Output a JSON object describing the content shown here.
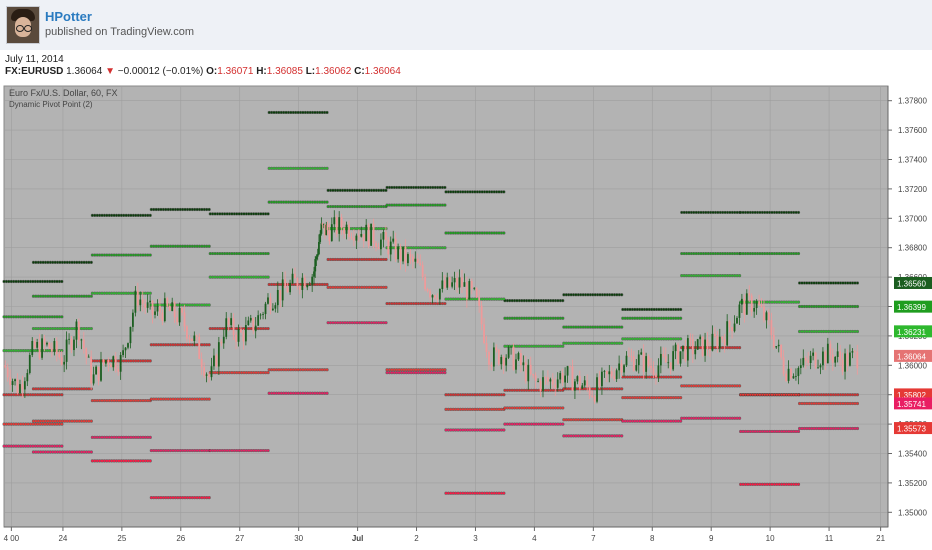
{
  "header": {
    "author": "HPotter",
    "published": "published on TradingView.com"
  },
  "info": {
    "date": "July 11, 2014",
    "symbol": "FX:EURUSD",
    "last": "1.36064",
    "change": "−0.00012 (−0.01%)",
    "open_label": "O:",
    "open": "1.36071",
    "high_label": "H:",
    "high": "1.36085",
    "low_label": "L:",
    "low": "1.36062",
    "close_label": "C:",
    "close": "1.36064"
  },
  "chart_data": {
    "type": "line",
    "title": "Euro Fx/U.S. Dollar, 60, FX",
    "subtitle": "Dynamic Pivot Point (2)",
    "ylim": [
      1.349,
      1.379
    ],
    "y_ticks": [
      "1.37800",
      "1.37600",
      "1.37400",
      "1.37200",
      "1.37000",
      "1.36800",
      "1.36600",
      "1.36400",
      "1.36200",
      "1.36000",
      "1.35800",
      "1.35600",
      "1.35400",
      "1.35200",
      "1.35000"
    ],
    "y_tick_values": [
      1.378,
      1.376,
      1.374,
      1.372,
      1.37,
      1.368,
      1.366,
      1.364,
      1.362,
      1.36,
      1.358,
      1.356,
      1.354,
      1.352,
      1.35
    ],
    "x_ticks": [
      "4 00",
      "24",
      "25",
      "26",
      "27",
      "30",
      "Jul",
      "2",
      "3",
      "4",
      "7",
      "8",
      "9",
      "10",
      "11",
      "21"
    ],
    "x_tick_pos": [
      0.5,
      4,
      8,
      12,
      16,
      20,
      24,
      28,
      32,
      36,
      40,
      44,
      48,
      52,
      56,
      59.5
    ],
    "xlim": [
      0,
      60
    ],
    "grid": true,
    "last_price_labels": [
      {
        "value": 1.3656,
        "text": "1.36560",
        "color": "#1b5e20"
      },
      {
        "value": 1.36399,
        "text": "1.36399",
        "color": "#1f9d1f"
      },
      {
        "value": 1.36231,
        "text": "1.36231",
        "color": "#2eb82e"
      },
      {
        "value": 1.36064,
        "text": "1.36064",
        "color": "#e57373"
      },
      {
        "value": 1.35802,
        "text": "1.35802",
        "color": "#e53935"
      },
      {
        "value": 1.35741,
        "text": "1.35741",
        "color": "#e91e63"
      },
      {
        "value": 1.35573,
        "text": "1.35573",
        "color": "#e53935"
      }
    ],
    "series": [
      {
        "color": "#0b3d0b",
        "segments": [
          [
            0,
            4,
            1.3657
          ],
          [
            2,
            6,
            1.367
          ],
          [
            6,
            10,
            1.3702
          ],
          [
            10,
            14,
            1.3706
          ],
          [
            14,
            18,
            1.3703
          ],
          [
            18,
            22,
            1.3772
          ],
          [
            22,
            26,
            1.3719
          ],
          [
            26,
            30,
            1.3721
          ],
          [
            30,
            34,
            1.3718
          ],
          [
            34,
            38,
            1.3644
          ],
          [
            38,
            42,
            1.3648
          ],
          [
            42,
            46,
            1.3638
          ],
          [
            46,
            50,
            1.3704
          ],
          [
            50,
            54,
            1.3704
          ],
          [
            54,
            58,
            1.3656
          ]
        ]
      },
      {
        "color": "#1f9d1f",
        "segments": [
          [
            0,
            4,
            1.3633
          ],
          [
            2,
            6,
            1.3647
          ],
          [
            6,
            10,
            1.3675
          ],
          [
            10,
            14,
            1.3681
          ],
          [
            14,
            18,
            1.3676
          ],
          [
            18,
            22,
            1.3711
          ],
          [
            22,
            26,
            1.3708
          ],
          [
            26,
            30,
            1.3709
          ],
          [
            30,
            34,
            1.369
          ],
          [
            34,
            38,
            1.3632
          ],
          [
            38,
            42,
            1.3626
          ],
          [
            42,
            46,
            1.3632
          ],
          [
            46,
            50,
            1.3676
          ],
          [
            50,
            54,
            1.3676
          ],
          [
            54,
            58,
            1.364
          ]
        ]
      },
      {
        "color": "#2eb82e",
        "segments": [
          [
            0,
            4,
            1.361
          ],
          [
            2,
            6,
            1.3625
          ],
          [
            6,
            10,
            1.3649
          ],
          [
            10,
            14,
            1.3641
          ],
          [
            14,
            18,
            1.366
          ],
          [
            18,
            22,
            1.3734
          ],
          [
            22,
            26,
            1.3693
          ],
          [
            26,
            30,
            1.368
          ],
          [
            30,
            34,
            1.3645
          ],
          [
            34,
            38,
            1.3613
          ],
          [
            38,
            42,
            1.3615
          ],
          [
            42,
            46,
            1.3618
          ],
          [
            46,
            50,
            1.3661
          ],
          [
            50,
            54,
            1.3643
          ],
          [
            54,
            58,
            1.3623
          ]
        ]
      },
      {
        "color": "#d32f2f",
        "segments": [
          [
            0,
            4,
            1.358
          ],
          [
            2,
            6,
            1.3584
          ],
          [
            6,
            10,
            1.3603
          ],
          [
            10,
            14,
            1.3614
          ],
          [
            14,
            18,
            1.3625
          ],
          [
            18,
            22,
            1.3655
          ],
          [
            22,
            26,
            1.3672
          ],
          [
            26,
            30,
            1.3642
          ],
          [
            30,
            34,
            1.358
          ],
          [
            34,
            38,
            1.3583
          ],
          [
            38,
            42,
            1.3584
          ],
          [
            42,
            46,
            1.3592
          ],
          [
            46,
            50,
            1.3612
          ],
          [
            50,
            54,
            1.358
          ],
          [
            54,
            58,
            1.358
          ]
        ]
      },
      {
        "color": "#e53935",
        "segments": [
          [
            0,
            4,
            1.356
          ],
          [
            2,
            6,
            1.3562
          ],
          [
            6,
            10,
            1.3576
          ],
          [
            10,
            14,
            1.3577
          ],
          [
            14,
            18,
            1.3595
          ],
          [
            18,
            22,
            1.3597
          ],
          [
            22,
            26,
            1.3653
          ],
          [
            26,
            30,
            1.3597
          ],
          [
            30,
            34,
            1.357
          ],
          [
            34,
            38,
            1.3571
          ],
          [
            38,
            42,
            1.3563
          ],
          [
            42,
            46,
            1.3578
          ],
          [
            46,
            50,
            1.3586
          ],
          [
            50,
            54,
            1.358
          ],
          [
            54,
            58,
            1.3574
          ]
        ]
      },
      {
        "color": "#e91e63",
        "segments": [
          [
            0,
            4,
            1.3545
          ],
          [
            2,
            6,
            1.3541
          ],
          [
            6,
            10,
            1.3551
          ],
          [
            10,
            14,
            1.3542
          ],
          [
            14,
            18,
            1.3542
          ],
          [
            18,
            22,
            1.3581
          ],
          [
            22,
            26,
            1.3629
          ],
          [
            26,
            30,
            1.3595
          ],
          [
            30,
            34,
            1.3556
          ],
          [
            34,
            38,
            1.356
          ],
          [
            38,
            42,
            1.3552
          ],
          [
            42,
            46,
            1.3562
          ],
          [
            46,
            50,
            1.3564
          ],
          [
            50,
            54,
            1.3555
          ],
          [
            54,
            58,
            1.3557
          ]
        ]
      },
      {
        "color": "#ff1744",
        "segments": [
          [
            6,
            10,
            1.3535
          ],
          [
            10,
            14,
            1.351
          ],
          [
            30,
            34,
            1.3513
          ],
          [
            50,
            54,
            1.3519
          ]
        ]
      }
    ],
    "price_path": [
      [
        0,
        1.36
      ],
      [
        1,
        1.3584
      ],
      [
        2,
        1.3611
      ],
      [
        3,
        1.3613
      ],
      [
        4,
        1.3604
      ],
      [
        5,
        1.3628
      ],
      [
        6,
        1.359
      ],
      [
        7,
        1.3605
      ],
      [
        8,
        1.3603
      ],
      [
        9,
        1.3648
      ],
      [
        10,
        1.3635
      ],
      [
        11,
        1.3638
      ],
      [
        12,
        1.3632
      ],
      [
        13,
        1.3615
      ],
      [
        14,
        1.359
      ],
      [
        15,
        1.3628
      ],
      [
        16,
        1.362
      ],
      [
        17,
        1.3628
      ],
      [
        18,
        1.3645
      ],
      [
        19,
        1.3651
      ],
      [
        20,
        1.3658
      ],
      [
        21,
        1.3662
      ],
      [
        21.5,
        1.3692
      ],
      [
        22,
        1.3692
      ],
      [
        23,
        1.3695
      ],
      [
        24,
        1.3692
      ],
      [
        25,
        1.3688
      ],
      [
        26,
        1.3682
      ],
      [
        27,
        1.3674
      ],
      [
        28,
        1.3668
      ],
      [
        29,
        1.365
      ],
      [
        30,
        1.3653
      ],
      [
        31,
        1.3656
      ],
      [
        32,
        1.3645
      ],
      [
        33,
        1.3605
      ],
      [
        34,
        1.3608
      ],
      [
        35,
        1.3601
      ],
      [
        36,
        1.3588
      ],
      [
        37,
        1.3589
      ],
      [
        38,
        1.3594
      ],
      [
        39,
        1.3588
      ],
      [
        40,
        1.3582
      ],
      [
        41,
        1.3592
      ],
      [
        42,
        1.3604
      ],
      [
        43,
        1.3604
      ],
      [
        44,
        1.3599
      ],
      [
        45,
        1.3602
      ],
      [
        46,
        1.361
      ],
      [
        47,
        1.3612
      ],
      [
        48,
        1.3614
      ],
      [
        49,
        1.3622
      ],
      [
        50,
        1.364
      ],
      [
        51,
        1.3643
      ],
      [
        52,
        1.3625
      ],
      [
        53,
        1.3597
      ],
      [
        54,
        1.3598
      ],
      [
        55,
        1.3605
      ],
      [
        56,
        1.3608
      ],
      [
        57,
        1.3603
      ],
      [
        58,
        1.3606
      ]
    ]
  }
}
